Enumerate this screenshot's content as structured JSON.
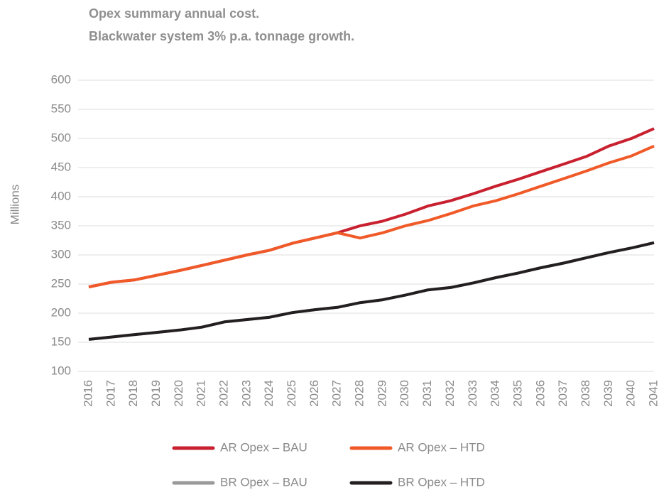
{
  "chart_data": {
    "type": "line",
    "title": "Opex summary annual cost.",
    "subtitle": "Blackwater system 3% p.a. tonnage growth.",
    "y_label": "Millions",
    "categories": [
      "2016",
      "2017",
      "2018",
      "2019",
      "2020",
      "2021",
      "2022",
      "2023",
      "2024",
      "2025",
      "2026",
      "2027",
      "2028",
      "2029",
      "2030",
      "2031",
      "2032",
      "2033",
      "2034",
      "2035",
      "2036",
      "2037",
      "2038",
      "2039",
      "2040",
      "2041"
    ],
    "series": [
      {
        "name": "AR Opex – BAU",
        "color": "#c8202f",
        "values": [
          245,
          253,
          257,
          265,
          273,
          282,
          291,
          300,
          308,
          320,
          329,
          338,
          350,
          358,
          370,
          384,
          393,
          405,
          418,
          430,
          443,
          456,
          469,
          487,
          500,
          517
        ]
      },
      {
        "name": "AR Opex – HTD",
        "color": "#f05a28",
        "values": [
          245,
          253,
          257,
          265,
          273,
          282,
          291,
          300,
          308,
          320,
          329,
          338,
          329,
          338,
          350,
          359,
          371,
          384,
          393,
          405,
          418,
          431,
          444,
          458,
          470,
          487
        ]
      },
      {
        "name": "BR Opex – BAU",
        "color": "#9a9a9a",
        "values": [
          155,
          159,
          163,
          167,
          171,
          176,
          185,
          189,
          193,
          201,
          206,
          210,
          218,
          223,
          231,
          240,
          244,
          252,
          261,
          269,
          278,
          286,
          295,
          304,
          312,
          321
        ]
      },
      {
        "name": "BR Opex – HTD",
        "color": "#231f20",
        "values": [
          155,
          159,
          163,
          167,
          171,
          176,
          185,
          189,
          193,
          201,
          206,
          210,
          218,
          223,
          231,
          240,
          244,
          252,
          261,
          269,
          278,
          286,
          295,
          304,
          312,
          321
        ]
      }
    ],
    "ylim": [
      100,
      600
    ],
    "yticks": [
      100,
      150,
      200,
      250,
      300,
      350,
      400,
      450,
      500,
      550,
      600
    ],
    "grid": true
  }
}
